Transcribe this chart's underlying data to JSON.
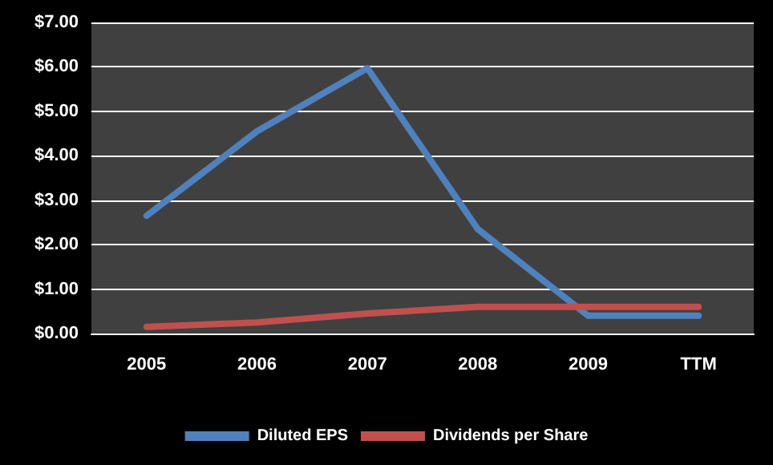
{
  "chart_data": {
    "type": "line",
    "categories": [
      "2005",
      "2006",
      "2007",
      "2008",
      "2009",
      "TTM"
    ],
    "series": [
      {
        "name": "Diluted EPS",
        "color": "#4f81bd",
        "values": [
          2.65,
          4.55,
          5.97,
          2.35,
          0.4,
          0.4
        ]
      },
      {
        "name": "Dividends per Share",
        "color": "#c0504d",
        "values": [
          0.15,
          0.25,
          0.45,
          0.6,
          0.6,
          0.6
        ]
      }
    ],
    "ylim": [
      0,
      7
    ],
    "yticks": [
      {
        "value": 0,
        "label": "$0.00"
      },
      {
        "value": 1,
        "label": "$1.00"
      },
      {
        "value": 2,
        "label": "$2.00"
      },
      {
        "value": 3,
        "label": "$3.00"
      },
      {
        "value": 4,
        "label": "$4.00"
      },
      {
        "value": 5,
        "label": "$5.00"
      },
      {
        "value": 6,
        "label": "$6.00"
      },
      {
        "value": 7,
        "label": "$7.00"
      }
    ],
    "grid": "y",
    "legend": "bottom",
    "marker": "none",
    "line_style": "solid"
  }
}
